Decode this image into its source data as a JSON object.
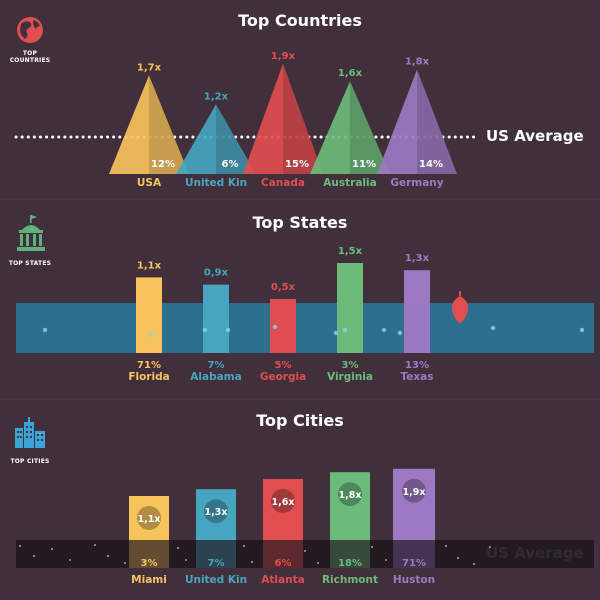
{
  "colors": {
    "background": "#41303c",
    "yellow": "#f7c35c",
    "blue": "#47a5bf",
    "red": "#e04e50",
    "green": "#6cbb7a",
    "purple": "#9c79c2",
    "band_blue": "#2c6f8f",
    "band_dark": "#1f1820"
  },
  "us_average_label": "US Average",
  "sections": {
    "countries": {
      "title": "Top Countries",
      "icon_label": "TOP COUNTRIES"
    },
    "states": {
      "title": "Top States",
      "icon_label": "TOP STATES"
    },
    "cities": {
      "title": "Top Cities",
      "icon_label": "TOP CITIES"
    }
  },
  "chart_data": [
    {
      "type": "bar",
      "title": "Top Countries",
      "shape": "triangle",
      "categories": [
        "USA",
        "United Kin",
        "Canada",
        "Australia",
        "Germany"
      ],
      "multipliers": [
        "1,7x",
        "1,2x",
        "1,9x",
        "1,6x",
        "1,8x"
      ],
      "values": [
        1.7,
        1.2,
        1.9,
        1.6,
        1.8
      ],
      "percents": [
        "12%",
        "6%",
        "15%",
        "11%",
        "14%"
      ],
      "colors": [
        "yellow",
        "blue",
        "red",
        "green",
        "purple"
      ],
      "reference_line": "US Average"
    },
    {
      "type": "bar",
      "title": "Top States",
      "categories": [
        "Florida",
        "Alabama",
        "Georgia",
        "Virginia",
        "Texas"
      ],
      "multipliers": [
        "1,1x",
        "0,9x",
        "0,5x",
        "1,5x",
        "1,3x"
      ],
      "values": [
        1.1,
        0.9,
        0.5,
        1.5,
        1.3
      ],
      "percents": [
        "71%",
        "7%",
        "5%",
        "3%",
        "13%"
      ],
      "colors": [
        "yellow",
        "blue",
        "red",
        "green",
        "purple"
      ],
      "reference_line": "US Average"
    },
    {
      "type": "bar",
      "title": "Top Cities",
      "categories": [
        "Miami",
        "United Kin",
        "Atlanta",
        "Richmont",
        "Huston"
      ],
      "multipliers": [
        "1,1x",
        "1,3x",
        "1,6x",
        "1,8x",
        "1,9x"
      ],
      "values": [
        1.1,
        1.3,
        1.6,
        1.8,
        1.9
      ],
      "percents": [
        "3%",
        "7%",
        "6%",
        "18%",
        "71%"
      ],
      "colors": [
        "yellow",
        "blue",
        "red",
        "green",
        "purple"
      ],
      "reference_line": "US Average"
    }
  ]
}
